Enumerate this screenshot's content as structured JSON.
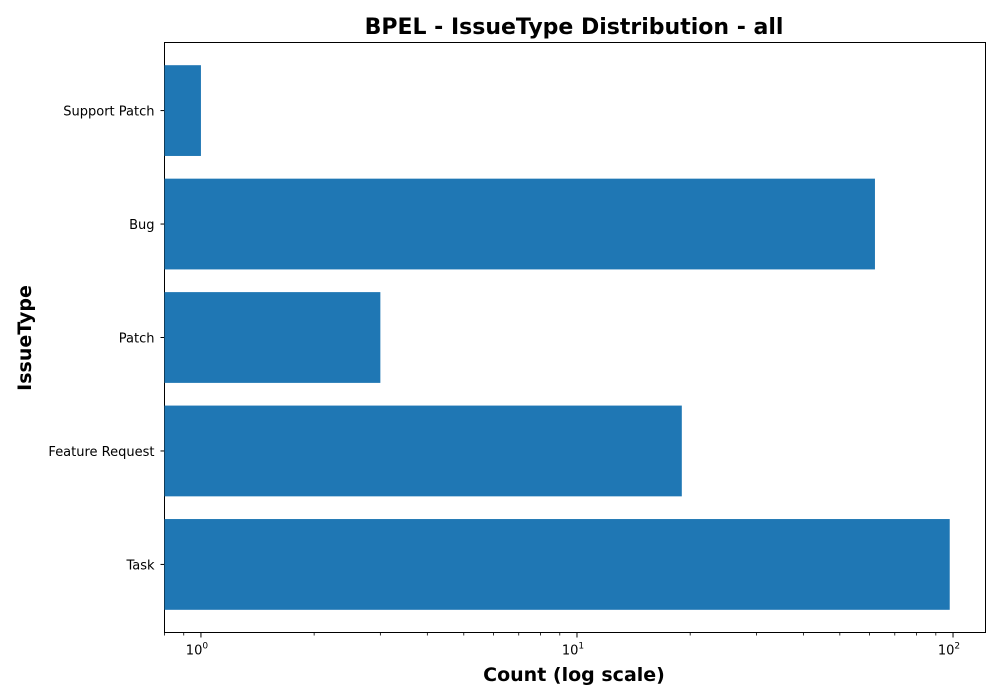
{
  "chart_data": {
    "type": "bar",
    "orientation": "horizontal",
    "title": "BPEL - IssueType Distribution - all",
    "xlabel": "Count (log scale)",
    "ylabel": "IssueType",
    "x_scale": "log",
    "xlim": [
      0.8,
      122
    ],
    "x_ticks": [
      {
        "base": "10",
        "exp": "0",
        "value": 1
      },
      {
        "base": "10",
        "exp": "1",
        "value": 10
      },
      {
        "base": "10",
        "exp": "2",
        "value": 100
      }
    ],
    "categories": [
      "Task",
      "Feature Request",
      "Patch",
      "Bug",
      "Support Patch"
    ],
    "values": [
      98,
      19,
      3,
      62,
      1
    ],
    "bar_color": "#1f77b4",
    "grid": false,
    "legend": "none"
  }
}
